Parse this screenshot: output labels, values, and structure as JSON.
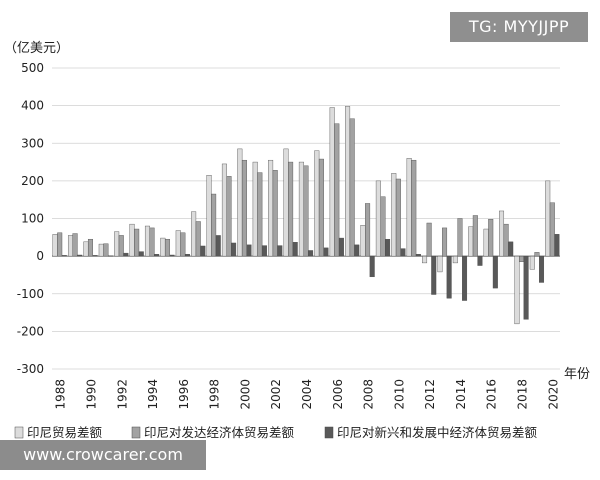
{
  "watermarks": {
    "top": "TG: MYYJJPP",
    "bottom": "www.crowcarer.com"
  },
  "chart_data": {
    "type": "bar",
    "yunit": "（亿美元）",
    "xunit": "年份",
    "ylim": [
      -300,
      500
    ],
    "yticks": [
      -300,
      -200,
      -100,
      0,
      100,
      200,
      300,
      400,
      500
    ],
    "xtick_labels": [
      "1988",
      "1990",
      "1992",
      "1994",
      "1996",
      "1998",
      "2000",
      "2002",
      "2004",
      "2006",
      "2008",
      "2010",
      "2012",
      "2014",
      "2016",
      "2018",
      "2020"
    ],
    "categories": [
      "1988",
      "1989",
      "1990",
      "1991",
      "1992",
      "1993",
      "1994",
      "1995",
      "1996",
      "1997",
      "1998",
      "1999",
      "2000",
      "2001",
      "2002",
      "2003",
      "2004",
      "2005",
      "2006",
      "2007",
      "2008",
      "2009",
      "2010",
      "2011",
      "2012",
      "2013",
      "2014",
      "2015",
      "2016",
      "2017",
      "2018",
      "2019",
      "2020"
    ],
    "series": [
      {
        "name": "印尼贸易差额",
        "fill": "#dcdcdc",
        "values": [
          58,
          55,
          38,
          32,
          65,
          85,
          80,
          48,
          68,
          118,
          215,
          245,
          285,
          250,
          255,
          285,
          250,
          280,
          395,
          398,
          82,
          200,
          220,
          260,
          -18,
          -42,
          -18,
          78,
          72,
          120,
          -180,
          -35,
          200
        ]
      },
      {
        "name": "印尼对发达经济体贸易差额",
        "fill": "#a2a2a2",
        "values": [
          62,
          60,
          45,
          33,
          55,
          72,
          75,
          45,
          62,
          92,
          165,
          212,
          255,
          222,
          228,
          250,
          240,
          258,
          352,
          365,
          140,
          158,
          205,
          255,
          88,
          75,
          100,
          108,
          98,
          85,
          -15,
          10,
          142
        ]
      },
      {
        "name": "印尼对新兴和发展中经济体贸易差额",
        "fill": "#595959",
        "values": [
          2,
          3,
          2,
          1,
          8,
          12,
          5,
          3,
          5,
          27,
          55,
          35,
          30,
          28,
          28,
          37,
          15,
          22,
          48,
          30,
          -55,
          45,
          20,
          5,
          -102,
          -112,
          -118,
          -25,
          -85,
          38,
          -168,
          -70,
          58
        ]
      }
    ]
  }
}
